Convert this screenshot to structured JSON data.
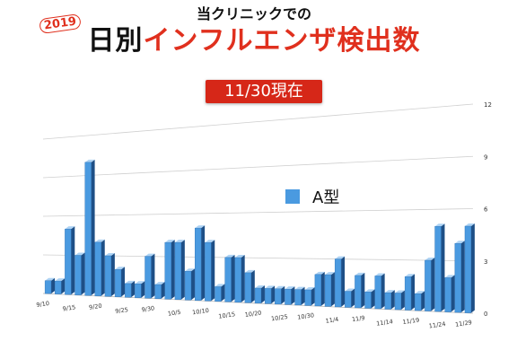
{
  "header": {
    "subtitle": "当クリニックでの",
    "year_badge": "2019",
    "title_part1": "日別",
    "title_part2": "インフルエンザ検出数",
    "date_label": "11/30現在"
  },
  "colors": {
    "bar": "#4a9ae0",
    "bar_side": "#1e4f86",
    "bar_top": "#aed3f4",
    "title_red": "#e0301e",
    "date_box": "#d62718"
  },
  "chart_data": {
    "type": "bar",
    "title": "",
    "xlabel": "",
    "ylabel": "",
    "ylim": [
      0,
      12
    ],
    "yticks": [
      "0",
      "3",
      "6",
      "9",
      "12"
    ],
    "grid": true,
    "legend_position": "right",
    "series": [
      {
        "name": "A型",
        "values": [
          1,
          1,
          5,
          3,
          10,
          4,
          3,
          2,
          1,
          1,
          3,
          1,
          4,
          4,
          2,
          5,
          4,
          1,
          3,
          3,
          2,
          1,
          1,
          1,
          1,
          1,
          1,
          2,
          2,
          3,
          1,
          2,
          1,
          2,
          1,
          1,
          2,
          1,
          3,
          5,
          2,
          4,
          5
        ]
      }
    ],
    "x_tick_labels": [
      "9/10",
      "9/15",
      "9/20",
      "9/25",
      "9/30",
      "10/5",
      "10/10",
      "10/15",
      "10/20",
      "10/25",
      "10/30",
      "11/4",
      "11/9",
      "11/14",
      "11/19",
      "11/24",
      "11/29"
    ]
  }
}
